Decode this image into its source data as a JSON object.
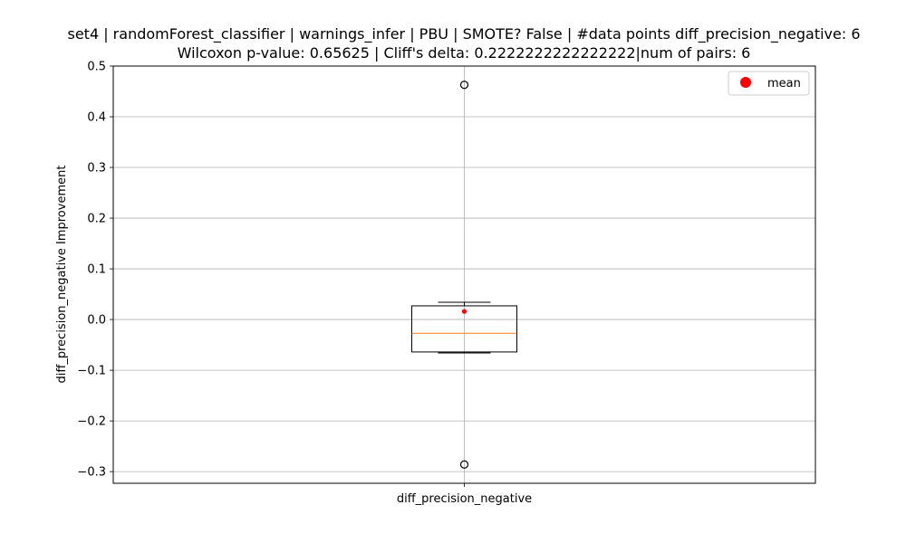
{
  "chart_data": {
    "type": "box",
    "title_line1": "set4 | randomForest_classifier | warnings_infer | PBU | SMOTE? False | #data points diff_precision_negative: 6",
    "title_line2": "Wilcoxon p-value: 0.65625 | Cliff's delta: 0.2222222222222222|num of pairs: 6",
    "xlabel": "diff_precision_negative",
    "ylabel": "diff_precision_negative Improvement",
    "ylim": [
      -0.323,
      0.5
    ],
    "yticks": [
      0.5,
      0.4,
      0.3,
      0.2,
      0.1,
      0.0,
      -0.1,
      -0.2,
      -0.3
    ],
    "ytick_labels": [
      "0.5",
      "0.4",
      "0.3",
      "0.2",
      "0.1",
      "0.0",
      "−0.1",
      "−0.2",
      "−0.3"
    ],
    "grid": true,
    "legend": {
      "placement": "top-right",
      "entries": [
        {
          "label": "mean",
          "color": "#ff0000"
        }
      ]
    },
    "categories": [
      "diff_precision_negative"
    ],
    "boxes": [
      {
        "category": "diff_precision_negative",
        "whisker_low": -0.066,
        "q1": -0.064,
        "median": -0.027,
        "q3": 0.027,
        "whisker_high": 0.034,
        "mean": 0.016,
        "outliers": [
          0.463,
          -0.286
        ]
      }
    ],
    "colors": {
      "median": "#ff7f0e",
      "mean": "#ff0000",
      "grid": "#b0b0b0",
      "box": "#000000"
    }
  }
}
